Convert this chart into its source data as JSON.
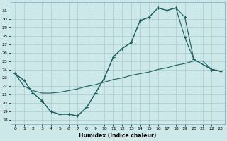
{
  "bg_color": "#cce8e8",
  "grid_color": "#aacccc",
  "line_color": "#1a6060",
  "xlabel": "Humidex (Indice chaleur)",
  "xlim": [
    -0.5,
    23.5
  ],
  "ylim": [
    17.5,
    32.0
  ],
  "yticks": [
    18,
    19,
    20,
    21,
    22,
    23,
    24,
    25,
    26,
    27,
    28,
    29,
    30,
    31
  ],
  "xticks": [
    0,
    1,
    2,
    3,
    4,
    5,
    6,
    7,
    8,
    9,
    10,
    11,
    12,
    13,
    14,
    15,
    16,
    17,
    18,
    19,
    20,
    21,
    22,
    23
  ],
  "line1_x": [
    0,
    1,
    2,
    3,
    4,
    5,
    6,
    7,
    8,
    9,
    10,
    11,
    12,
    13,
    14,
    15,
    16,
    17,
    18,
    19,
    20,
    22,
    23
  ],
  "line1_y": [
    23.5,
    22.7,
    21.2,
    20.3,
    19.0,
    18.7,
    18.7,
    18.5,
    19.5,
    21.2,
    23.0,
    25.5,
    26.5,
    27.2,
    29.8,
    30.2,
    31.3,
    31.0,
    31.3,
    30.2,
    25.2,
    24.0,
    23.8
  ],
  "line2_x": [
    0,
    1,
    2,
    3,
    4,
    5,
    6,
    7,
    8,
    9,
    10,
    11,
    12,
    13,
    14,
    15,
    16,
    17,
    18,
    19,
    20,
    21,
    22,
    23
  ],
  "line2_y": [
    23.5,
    22.0,
    21.5,
    21.2,
    21.2,
    21.3,
    21.5,
    21.7,
    22.0,
    22.2,
    22.5,
    22.8,
    23.0,
    23.3,
    23.5,
    23.7,
    24.0,
    24.2,
    24.5,
    24.7,
    25.0,
    25.0,
    24.0,
    23.8
  ],
  "line3_x": [
    0,
    1,
    2,
    3,
    4,
    5,
    6,
    7,
    8,
    9,
    10,
    11,
    12,
    13,
    14,
    15,
    16,
    17,
    18,
    19,
    20,
    22,
    23
  ],
  "line3_y": [
    23.5,
    22.7,
    21.2,
    20.3,
    19.0,
    18.7,
    18.7,
    18.5,
    19.5,
    21.2,
    23.0,
    25.5,
    26.5,
    27.2,
    29.8,
    30.2,
    31.3,
    31.0,
    31.3,
    27.8,
    25.2,
    24.0,
    23.8
  ]
}
